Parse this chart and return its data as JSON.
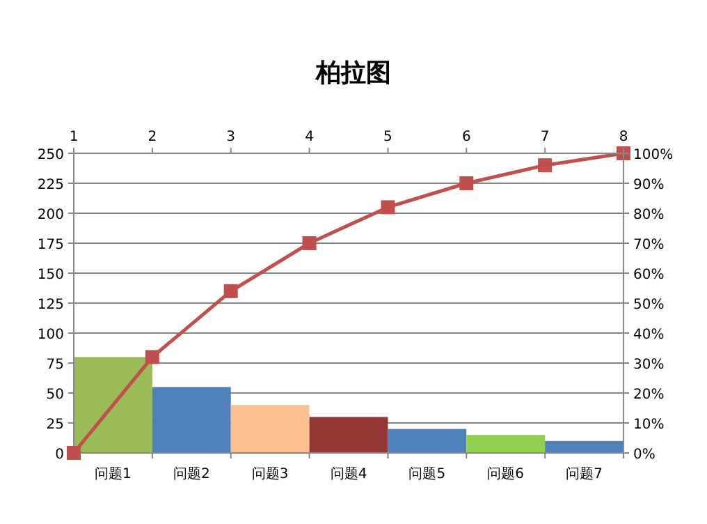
{
  "chart_data": [
    {
      "type": "bar",
      "title": "柏拉图",
      "categories": [
        "问题1",
        "问题2",
        "问题3",
        "问题4",
        "问题5",
        "问题6",
        "问题7"
      ],
      "ylim": [
        0,
        250
      ],
      "yticks": [
        0,
        25,
        50,
        75,
        100,
        125,
        150,
        175,
        200,
        225,
        250
      ],
      "grid": "y",
      "series": [
        {
          "values": [
            80,
            55,
            40,
            30,
            20,
            15,
            10
          ],
          "colors": [
            "#9bbb59",
            "#4f81bd",
            "#fac090",
            "#953735",
            "#4f81bd",
            "#92d050",
            "#4f81bd"
          ]
        }
      ]
    },
    {
      "type": "line",
      "marker": "square",
      "xlim": [
        1,
        8
      ],
      "xticks": [
        1,
        2,
        3,
        4,
        5,
        6,
        7,
        8
      ],
      "ylim": [
        0,
        100
      ],
      "yticks": [
        {
          "value": 0,
          "label": "0%"
        },
        {
          "value": 10,
          "label": "10%"
        },
        {
          "value": 20,
          "label": "20%"
        },
        {
          "value": 30,
          "label": "30%"
        },
        {
          "value": 40,
          "label": "40%"
        },
        {
          "value": 50,
          "label": "50%"
        },
        {
          "value": 60,
          "label": "60%"
        },
        {
          "value": 70,
          "label": "70%"
        },
        {
          "value": 80,
          "label": "80%"
        },
        {
          "value": 90,
          "label": "90%"
        },
        {
          "value": 100,
          "label": "100%"
        }
      ],
      "series": [
        {
          "x": [
            1,
            2,
            3,
            4,
            5,
            6,
            7,
            8
          ],
          "values": [
            0,
            32,
            54,
            70,
            82,
            90,
            96,
            100
          ],
          "color": "#c0504d"
        }
      ]
    }
  ]
}
